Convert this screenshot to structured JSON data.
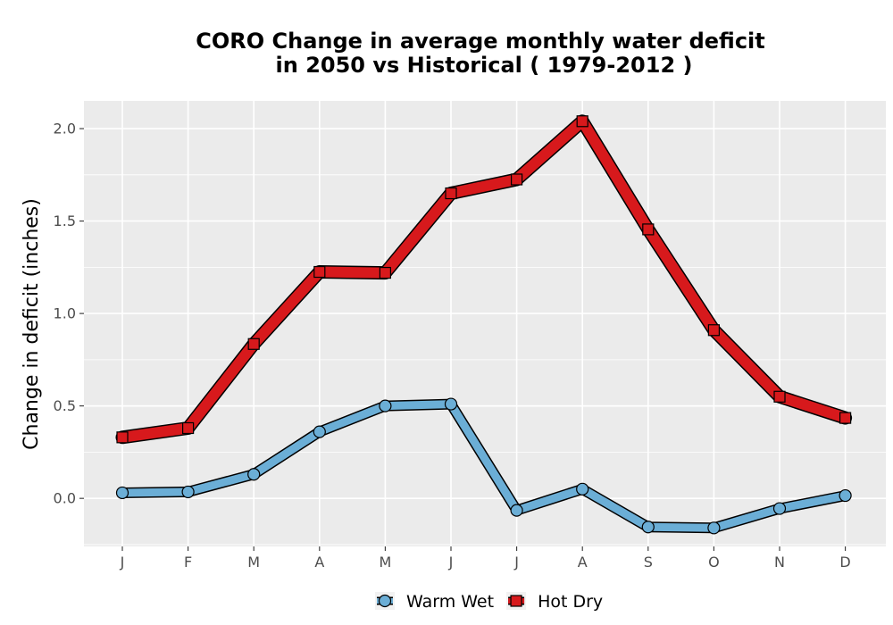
{
  "chart_data": {
    "type": "line",
    "title_line1": "CORO  Change in average monthly water deficit",
    "title_line2": "in 2050 vs Historical ( 1979-2012 )",
    "xlabel": "",
    "ylabel": "Change in deficit (inches)",
    "categories": [
      "J",
      "F",
      "M",
      "A",
      "M",
      "J",
      "J",
      "A",
      "S",
      "O",
      "N",
      "D"
    ],
    "ylim": [
      -0.26,
      2.15
    ],
    "yticks": [
      0.0,
      0.5,
      1.0,
      1.5,
      2.0
    ],
    "ytick_labels": [
      "0.0",
      "0.5",
      "1.0",
      "1.5",
      "2.0"
    ],
    "grid": true,
    "legend_position": "bottom",
    "series": [
      {
        "name": "Warm Wet",
        "marker": "circle",
        "color": "#6baed6",
        "values": [
          0.03,
          0.035,
          0.13,
          0.36,
          0.5,
          0.51,
          -0.065,
          0.05,
          -0.155,
          -0.16,
          -0.055,
          0.015
        ]
      },
      {
        "name": "Hot Dry",
        "marker": "square",
        "color": "#d7191c",
        "values": [
          0.33,
          0.38,
          0.835,
          1.225,
          1.22,
          1.65,
          1.725,
          2.04,
          1.455,
          0.91,
          0.55,
          0.435
        ]
      }
    ]
  },
  "colors": {
    "panel_background": "#ebebeb",
    "grid_line": "#ffffff",
    "outline": "#000000"
  }
}
